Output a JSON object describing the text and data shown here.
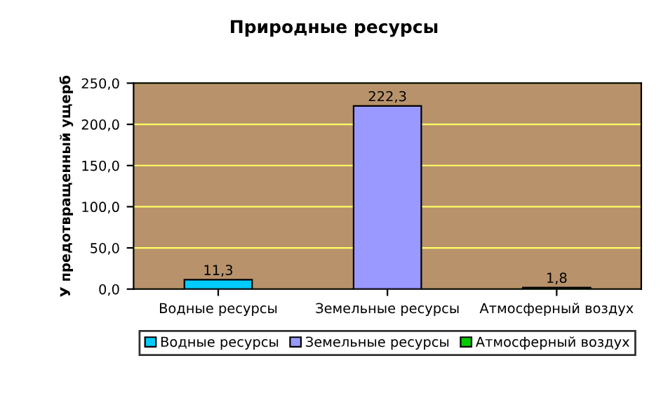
{
  "chart_data": {
    "type": "bar",
    "title": "Природные ресурсы",
    "ylabel": "У предотвращенный ущерб",
    "categories": [
      "Водные ресурсы",
      "Земельные ресурсы",
      "Атмосферный воздух"
    ],
    "series": [
      {
        "name": "Водные ресурсы",
        "color": "#00ccff",
        "values": [
          11.3,
          null,
          null
        ],
        "value_labels": [
          "11,3",
          null,
          null
        ]
      },
      {
        "name": "Земельные ресурсы",
        "color": "#9999ff",
        "values": [
          null,
          222.3,
          null
        ],
        "value_labels": [
          null,
          "222,3",
          null
        ]
      },
      {
        "name": "Атмосферный воздух",
        "color": "#00cc00",
        "values": [
          null,
          null,
          1.8
        ],
        "value_labels": [
          null,
          null,
          "1,8"
        ]
      }
    ],
    "ylim": [
      0,
      250
    ],
    "yticks": [
      {
        "value": 0,
        "label": "0,0"
      },
      {
        "value": 50,
        "label": "50,0"
      },
      {
        "value": 100,
        "label": "100,0"
      },
      {
        "value": 150,
        "label": "150,0"
      },
      {
        "value": 200,
        "label": "200,0"
      },
      {
        "value": 250,
        "label": "250,0"
      }
    ],
    "grid": "y",
    "legend": "bottom"
  }
}
